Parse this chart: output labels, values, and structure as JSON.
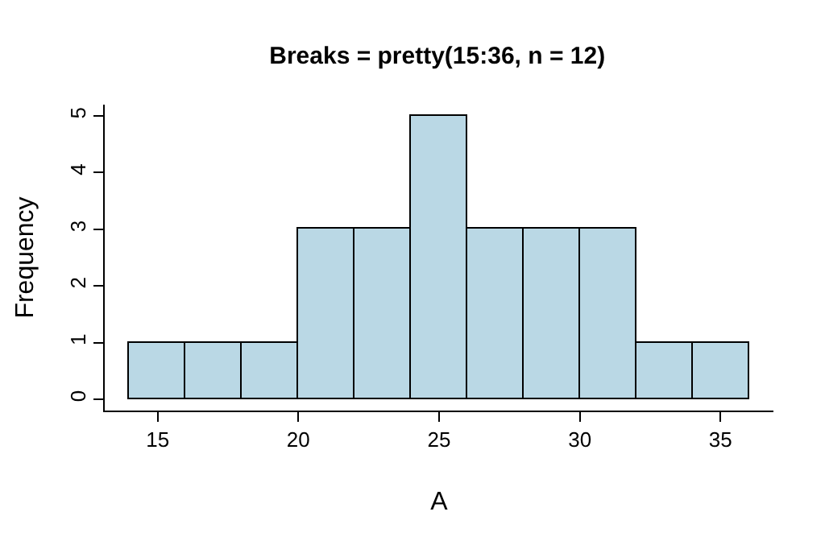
{
  "chart_data": {
    "type": "histogram",
    "title": "Breaks = pretty(15:36, n = 12)",
    "xlabel": "A",
    "ylabel": "Frequency",
    "bins": [
      14,
      16,
      18,
      20,
      22,
      24,
      26,
      28,
      30,
      32,
      34,
      36
    ],
    "values": [
      1,
      1,
      1,
      3,
      3,
      5,
      3,
      3,
      3,
      1,
      1
    ],
    "color": "#bad8e5",
    "xlim": [
      13.12,
      36.88
    ],
    "xticks": [
      15,
      20,
      25,
      30,
      35
    ],
    "ylim": [
      -0.2,
      5.2
    ],
    "yticks": [
      0,
      1,
      2,
      3,
      4,
      5
    ]
  }
}
